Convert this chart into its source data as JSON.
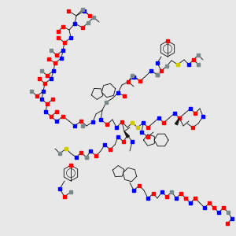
{
  "bg": "#e8e8e8",
  "figsize": [
    3.0,
    3.0
  ],
  "dpi": 100,
  "oc": "#ff0000",
  "nc": "#0000ff",
  "sc": "#cccc00",
  "cc": "#7a8a8a",
  "bc": "#1a1a1a",
  "lw": 0.65,
  "sq": 4.2
}
